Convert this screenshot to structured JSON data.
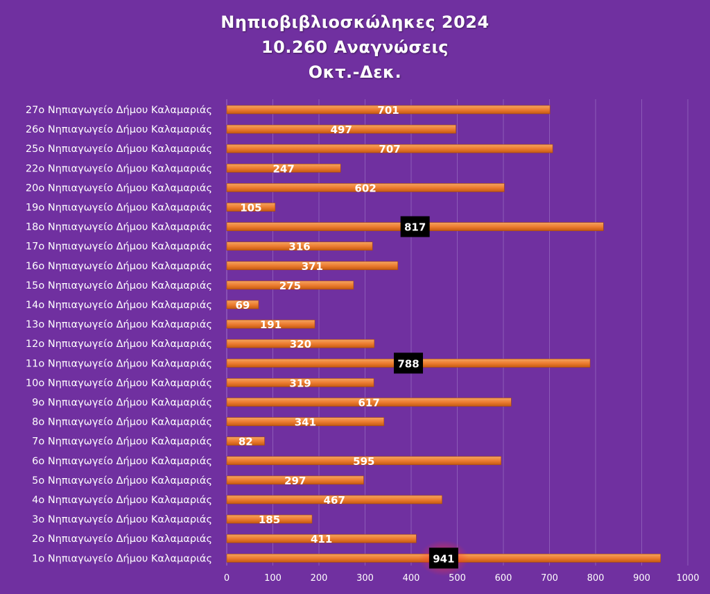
{
  "chart_data": {
    "type": "bar",
    "orientation": "horizontal",
    "title_lines": [
      "Νηπιοβιβλιοσκώληκες 2024",
      "10.260 Αναγνώσεις",
      "Οκτ.-Δεκ."
    ],
    "categories": [
      "27ο Νηπιαγωγείο Δήμου Καλαμαριάς",
      "26ο Νηπιαγωγείο Δήμου Καλαμαριάς",
      "25ο Νηπιαγωγείο Δήμου Καλαμαριάς",
      "22ο Νηπιαγωγείο Δήμου Καλαμαριάς",
      "20ο Νηπιαγωγείο Δήμου Καλαμαριάς",
      "19ο Νηπιαγωγείο Δήμου Καλαμαριάς",
      "18ο Νηπιαγωγείο Δήμου Καλαμαριάς",
      "17ο Νηπιαγωγείο Δήμου Καλαμαριάς",
      "16ο Νηπιαγωγείο Δήμου Καλαμαριάς",
      "15ο Νηπιαγωγείο Δήμου Καλαμαριάς",
      "14ο Νηπιαγωγείο Δήμου Καλαμαριάς",
      "13ο Νηπιαγωγείο Δήμου Καλαμαριάς",
      "12ο Νηπιαγωγείο Δήμου Καλαμαριάς",
      "11ο Νηπιαγωγείο Δήμου Καλαμαριάς",
      "10ο Νηπιαγωγείο Δήμου Καλαμαριάς",
      "9ο Νηπιαγωγείο Δήμου Καλαμαριάς",
      "8ο Νηπιαγωγείο Δήμου Καλαμαριάς",
      "7ο Νηπιαγωγείο Δήμου Καλαμαριάς",
      "6ο Νηπιαγωγείο Δήμου Καλαμαριάς",
      "5ο Νηπιαγωγείο Δήμου Καλαμαριάς",
      "4ο Νηπιαγωγείο Δήμου Καλαμαριάς",
      "3ο Νηπιαγωγείο Δήμου Καλαμαριάς",
      "2ο Νηπιαγωγείο Δήμου Καλαμαριάς",
      "1ο Νηπιαγωγείο Δήμου Καλαμαριάς"
    ],
    "values": [
      701,
      497,
      707,
      247,
      602,
      105,
      817,
      316,
      371,
      275,
      69,
      191,
      320,
      788,
      319,
      617,
      341,
      82,
      595,
      297,
      467,
      185,
      411,
      941
    ],
    "highlighted_values": [
      817,
      788,
      941
    ],
    "xlim": [
      0,
      1000
    ],
    "xticks": [
      0,
      100,
      200,
      300,
      400,
      500,
      600,
      700,
      800,
      900,
      1000
    ],
    "grid": "vertical",
    "legend": "none",
    "colors": {
      "background": "#7030a0",
      "bar": "#ed7d31",
      "bar_highlight": "#f4a460",
      "label_box": "#000000",
      "grid": "#8d5bb8",
      "text": "#ffffff"
    }
  }
}
